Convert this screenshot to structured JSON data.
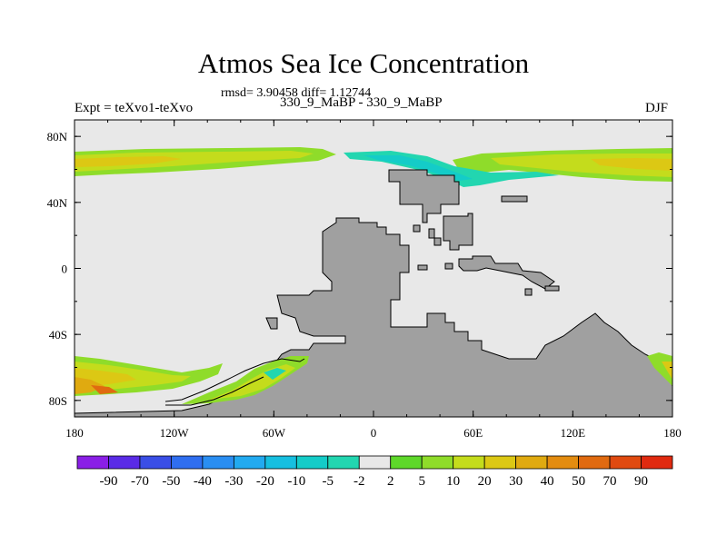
{
  "chart_data": {
    "type": "heatmap",
    "title": "Atmos Sea Ice Concentration",
    "subtitle_left": "Expt = teXvo1-teXvo",
    "subtitle_center": "330_9_MaBP - 330_9_MaBP",
    "subtitle_right": "DJF",
    "stats": "rmsd= 3.90458 diff= 1.12744",
    "xaxis": {
      "range": [
        -180,
        180
      ],
      "ticks": [
        -180,
        -120,
        -60,
        0,
        60,
        120,
        180
      ],
      "tick_labels": [
        "180",
        "120W",
        "60W",
        "0",
        "60E",
        "120E",
        "180"
      ]
    },
    "yaxis": {
      "range": [
        -90,
        90
      ],
      "ticks": [
        -80,
        -40,
        0,
        40,
        80
      ],
      "tick_labels": [
        "80S",
        "40S",
        "0",
        "40N",
        "80N"
      ]
    },
    "colorbar": {
      "levels": [
        "-90",
        "-70",
        "-50",
        "-40",
        "-30",
        "-20",
        "-10",
        "-5",
        "-2",
        "2",
        "5",
        "10",
        "20",
        "30",
        "40",
        "50",
        "70",
        "90"
      ],
      "colors": [
        "#8a1fe6",
        "#5a2be6",
        "#3a4ee6",
        "#2f6ef0",
        "#2a8ef2",
        "#22aaf0",
        "#16bfe0",
        "#14ccc8",
        "#22d6b0",
        "#e8e8e8",
        "#5ed82a",
        "#8fdc2a",
        "#c4dc1c",
        "#dcc814",
        "#e0aa10",
        "#e38c10",
        "#e06a10",
        "#e04a10",
        "#e02a10"
      ]
    },
    "colors": {
      "background": "#e8e8e8",
      "land": "#a0a0a0"
    }
  }
}
